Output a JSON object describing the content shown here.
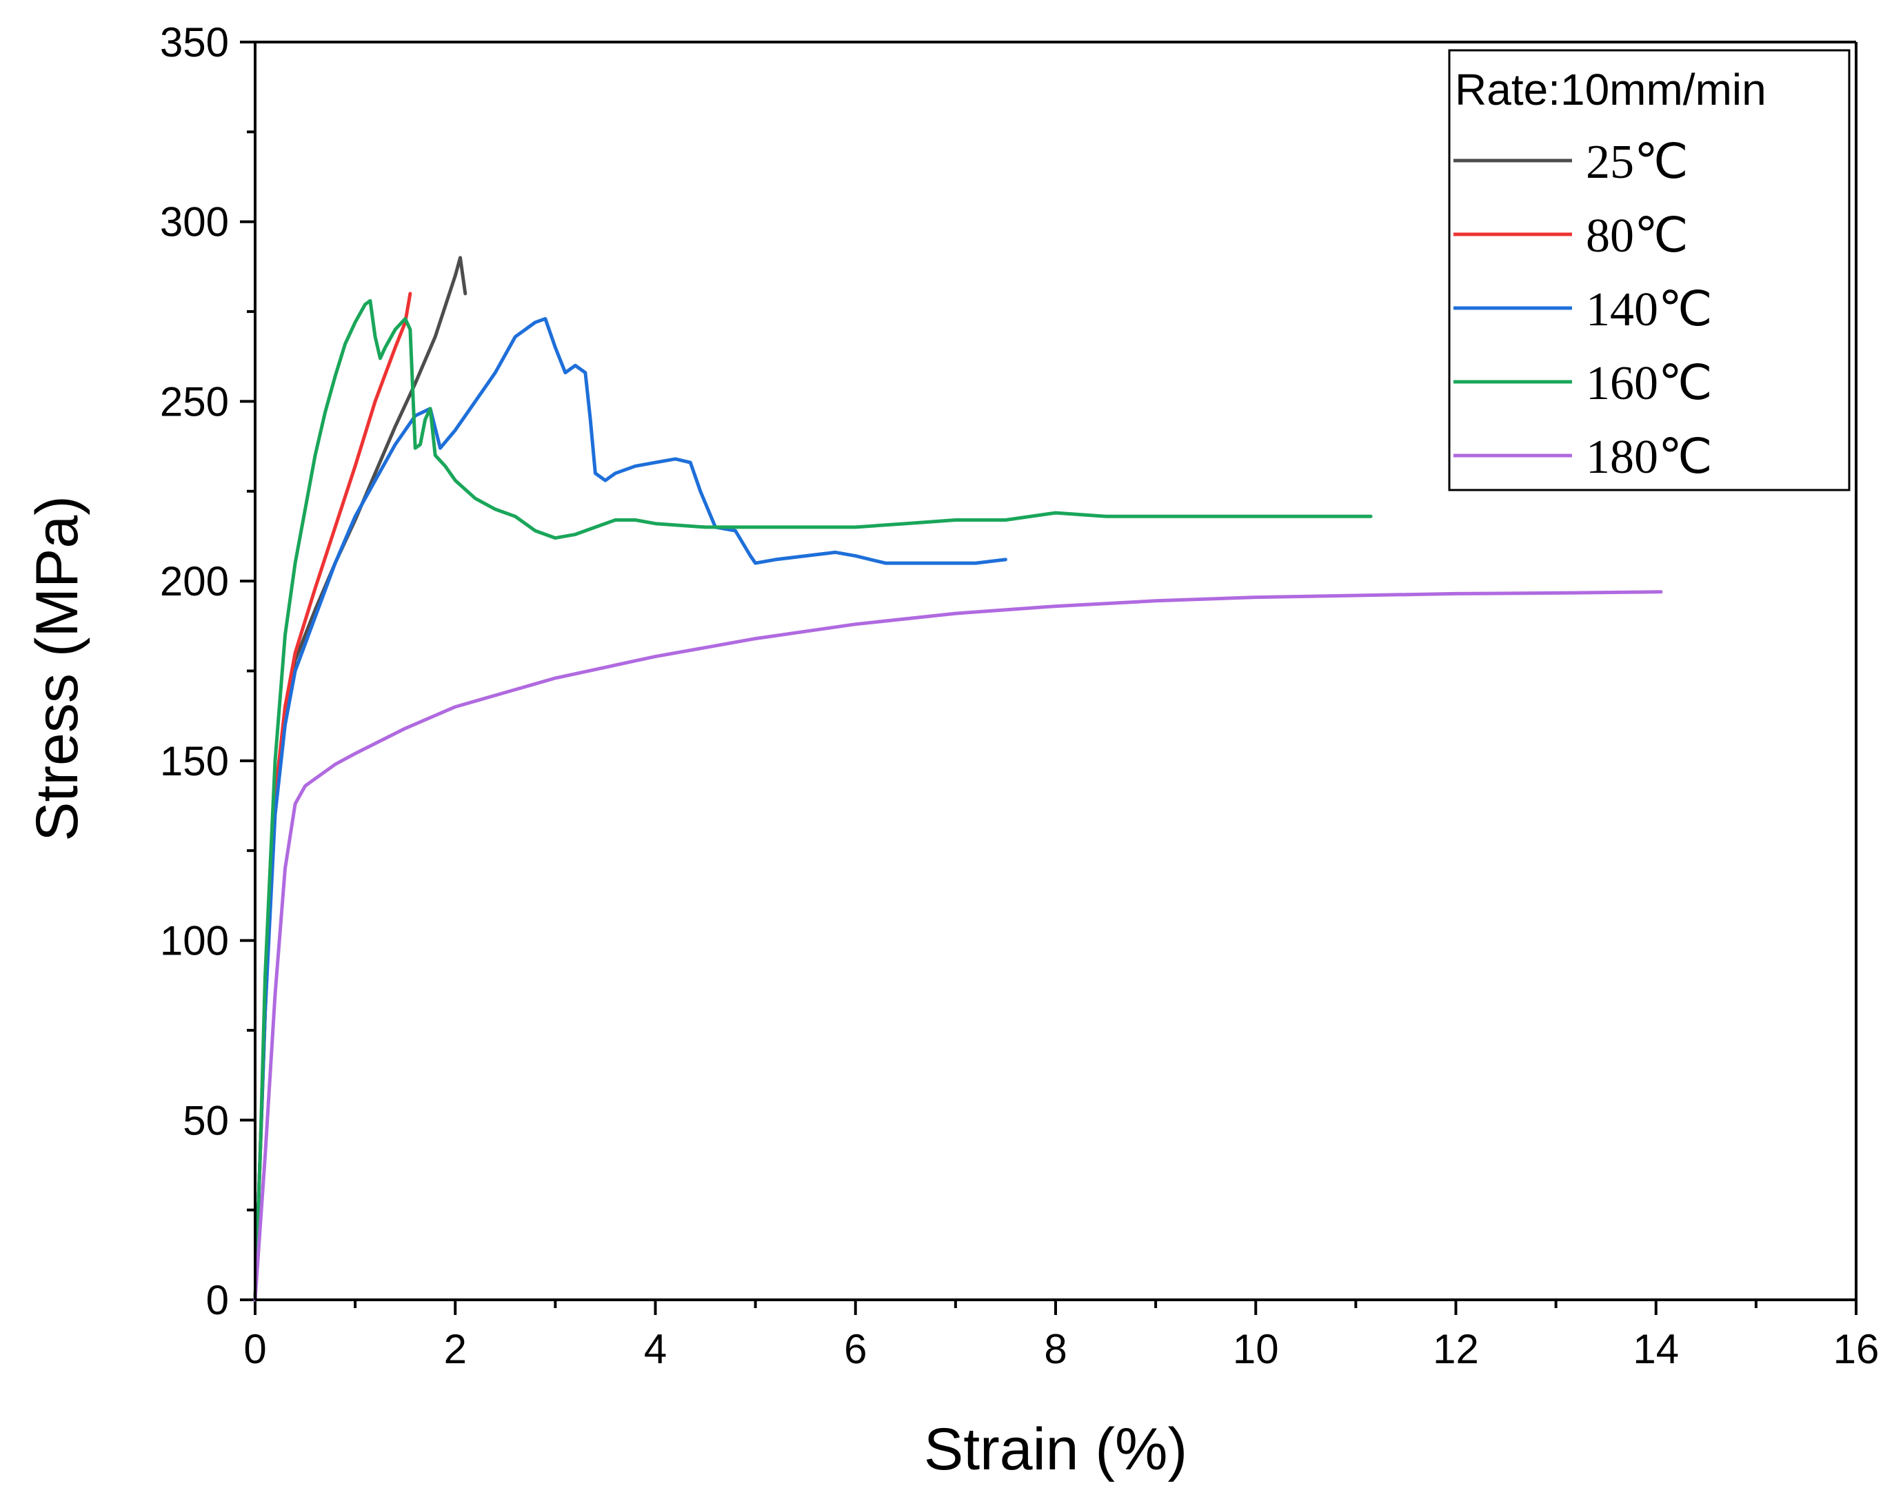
{
  "chart_data": {
    "type": "line",
    "title": "",
    "xlabel": "Strain (%)",
    "ylabel": "Stress (MPa)",
    "xlim": [
      0,
      16
    ],
    "ylim": [
      0,
      350
    ],
    "xticks": [
      0,
      2,
      4,
      6,
      8,
      10,
      12,
      14,
      16
    ],
    "xtick_labels": [
      "0",
      "2",
      "4",
      "6",
      "8",
      "10",
      "12",
      "14",
      "16"
    ],
    "yticks": [
      0,
      50,
      100,
      150,
      200,
      250,
      300,
      350
    ],
    "ytick_labels": [
      "0",
      "50",
      "100",
      "150",
      "200",
      "250",
      "300",
      "350"
    ],
    "grid": false,
    "legend": {
      "position": "top-right",
      "title": "Rate:10mm/min"
    },
    "series": [
      {
        "name": "25℃",
        "color": "#4d4d4d",
        "x": [
          0,
          0.1,
          0.2,
          0.3,
          0.4,
          0.6,
          0.8,
          1.0,
          1.2,
          1.4,
          1.6,
          1.8,
          2.0,
          2.05,
          2.1
        ],
        "y": [
          0,
          80,
          140,
          165,
          178,
          192,
          205,
          217,
          230,
          243,
          255,
          268,
          285,
          290,
          280
        ]
      },
      {
        "name": "80℃",
        "color": "#ee3333",
        "x": [
          0,
          0.1,
          0.2,
          0.3,
          0.4,
          0.6,
          0.8,
          1.0,
          1.2,
          1.4,
          1.5,
          1.55
        ],
        "y": [
          0,
          80,
          140,
          165,
          180,
          198,
          215,
          232,
          250,
          265,
          272,
          280
        ]
      },
      {
        "name": "140℃",
        "color": "#1e6fd9",
        "x": [
          0,
          0.1,
          0.2,
          0.3,
          0.4,
          0.6,
          0.8,
          1.0,
          1.2,
          1.4,
          1.6,
          1.75,
          1.85,
          2.0,
          2.2,
          2.4,
          2.6,
          2.8,
          2.9,
          3.0,
          3.1,
          3.2,
          3.3,
          3.35,
          3.4,
          3.5,
          3.6,
          3.8,
          4.0,
          4.2,
          4.35,
          4.45,
          4.6,
          4.8,
          4.95,
          5.0,
          5.2,
          5.5,
          5.8,
          6.0,
          6.3,
          6.8,
          7.2,
          7.5
        ],
        "y": [
          0,
          80,
          135,
          160,
          175,
          190,
          205,
          218,
          228,
          238,
          246,
          248,
          237,
          242,
          250,
          258,
          268,
          272,
          273,
          265,
          258,
          260,
          258,
          245,
          230,
          228,
          230,
          232,
          233,
          234,
          233,
          225,
          215,
          214,
          207,
          205,
          206,
          207,
          208,
          207,
          205,
          205,
          205,
          206
        ]
      },
      {
        "name": "160℃",
        "color": "#1aa65a",
        "x": [
          0,
          0.05,
          0.1,
          0.2,
          0.3,
          0.4,
          0.5,
          0.6,
          0.7,
          0.8,
          0.9,
          1.0,
          1.1,
          1.15,
          1.2,
          1.25,
          1.3,
          1.4,
          1.5,
          1.55,
          1.6,
          1.65,
          1.7,
          1.75,
          1.8,
          1.9,
          2.0,
          2.2,
          2.4,
          2.6,
          2.8,
          3.0,
          3.2,
          3.4,
          3.6,
          3.8,
          4.0,
          4.5,
          5.0,
          5.5,
          6.0,
          6.5,
          7.0,
          7.5,
          8.0,
          8.5,
          9.0,
          9.5,
          10.0,
          10.5,
          11.0,
          11.15
        ],
        "y": [
          0,
          40,
          90,
          150,
          185,
          205,
          220,
          235,
          247,
          257,
          266,
          272,
          277,
          278,
          268,
          262,
          265,
          270,
          273,
          270,
          237,
          238,
          245,
          248,
          235,
          232,
          228,
          223,
          220,
          218,
          214,
          212,
          213,
          215,
          217,
          217,
          216,
          215,
          215,
          215,
          215,
          216,
          217,
          217,
          219,
          218,
          218,
          218,
          218,
          218,
          218,
          218
        ]
      },
      {
        "name": "180℃",
        "color": "#b06ae0",
        "x": [
          0,
          0.1,
          0.2,
          0.3,
          0.4,
          0.5,
          0.6,
          0.8,
          1.0,
          1.5,
          2.0,
          3.0,
          4.0,
          5.0,
          6.0,
          7.0,
          8.0,
          9.0,
          10.0,
          11.0,
          12.0,
          13.0,
          14.05
        ],
        "y": [
          0,
          40,
          85,
          120,
          138,
          143,
          145,
          149,
          152,
          159,
          165,
          173,
          179,
          184,
          188,
          191,
          193,
          194.5,
          195.5,
          196,
          196.5,
          196.7,
          197
        ]
      }
    ]
  }
}
